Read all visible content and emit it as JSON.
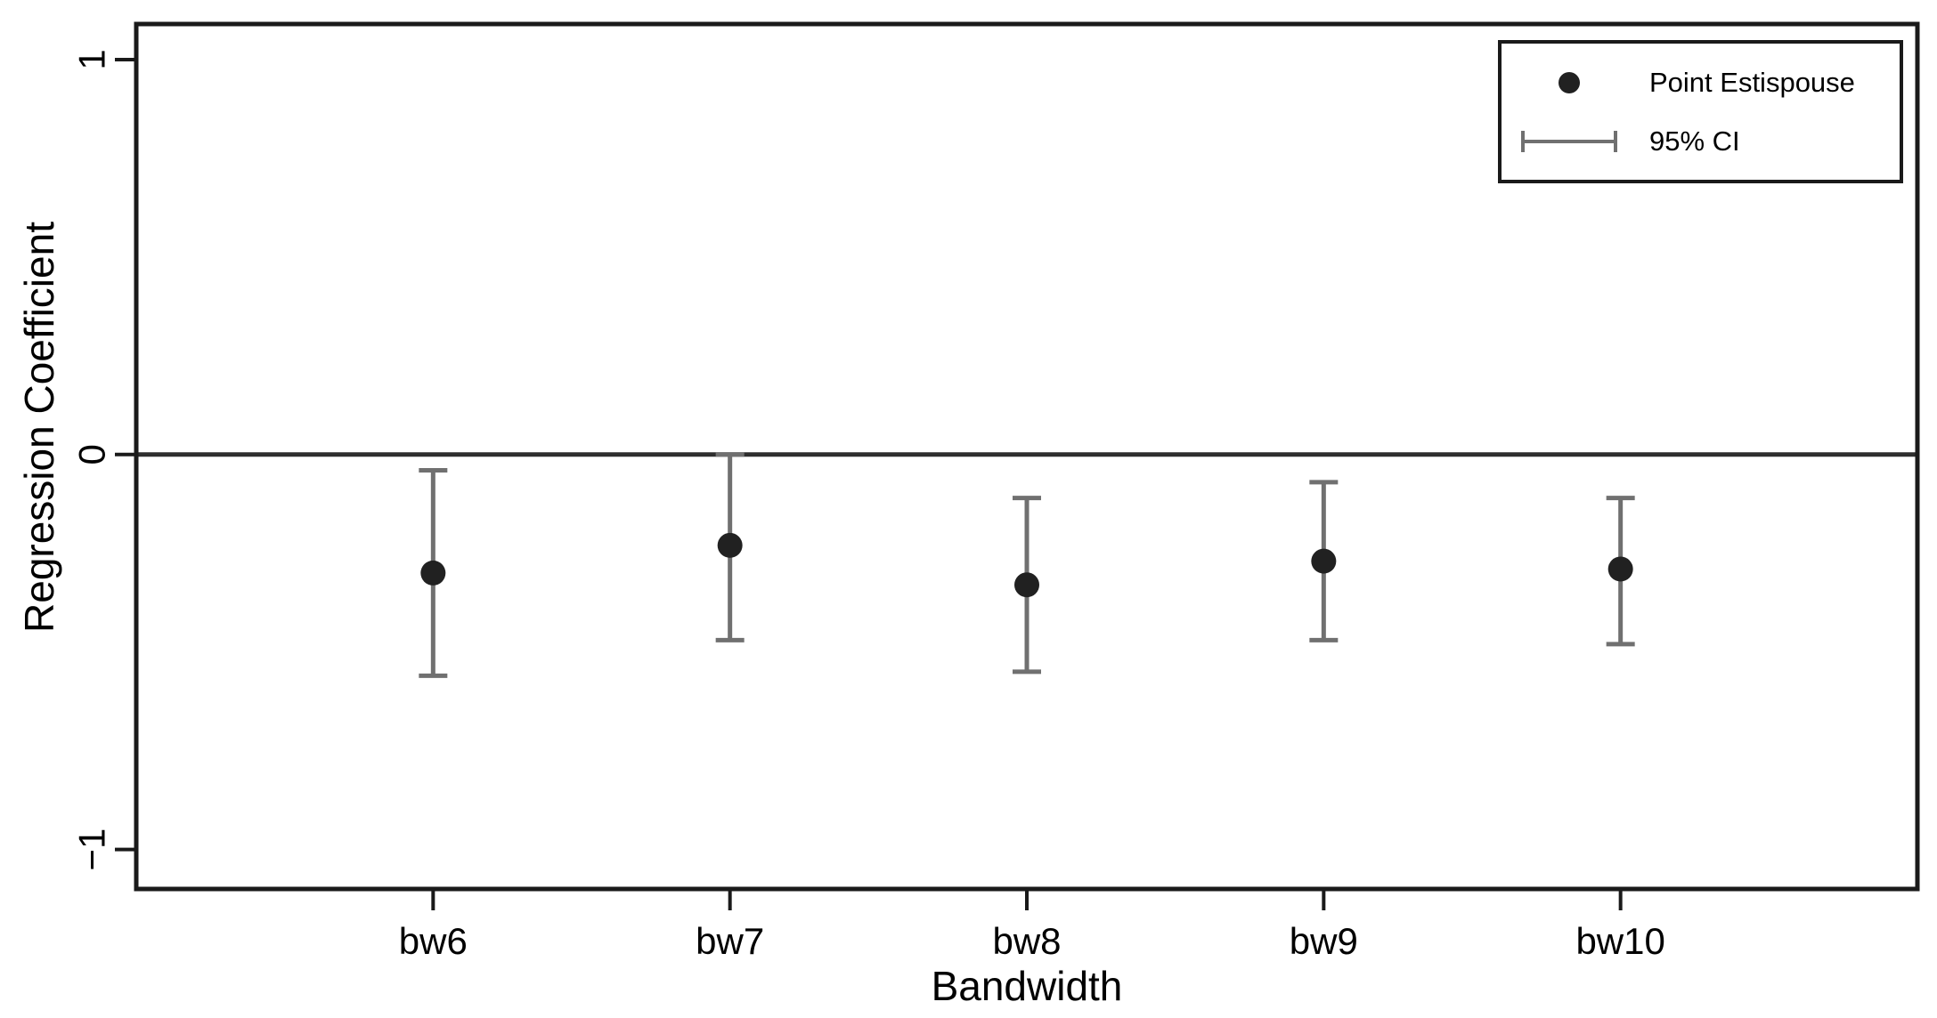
{
  "chart_data": {
    "type": "scatter",
    "subtype": "errorbar-coefficient-plot",
    "title": "",
    "xlabel": "Bandwidth",
    "ylabel": "Regression Coefficient",
    "categories": [
      "bw6",
      "bw7",
      "bw8",
      "bw9",
      "bw10"
    ],
    "x_positions": [
      1,
      2,
      3,
      4,
      5
    ],
    "xlim": [
      0,
      6
    ],
    "ylim": [
      -1.1,
      1.09
    ],
    "y_ticks": [
      1,
      0,
      -1
    ],
    "y_tick_labels": [
      "1",
      "0",
      "−1"
    ],
    "reference_line_y": 0,
    "grid": false,
    "series": [
      {
        "name": "Point Estispouse",
        "values": [
          -0.3,
          -0.23,
          -0.33,
          -0.27,
          -0.29
        ]
      }
    ],
    "ci_lower": [
      -0.56,
      -0.47,
      -0.55,
      -0.47,
      -0.48
    ],
    "ci_upper": [
      -0.04,
      0.0,
      -0.11,
      -0.07,
      -0.11
    ],
    "legend": {
      "position": "top-right",
      "entries": [
        {
          "marker": "point",
          "label": "Point Estispouse"
        },
        {
          "marker": "errorbar",
          "label": "95% CI"
        }
      ]
    },
    "colors": {
      "point": "#212121",
      "errorbar": "#707070",
      "reference_line": "#2e2e2e",
      "frame": "#1a1a1a",
      "text": "#000000",
      "background": "#ffffff"
    }
  }
}
